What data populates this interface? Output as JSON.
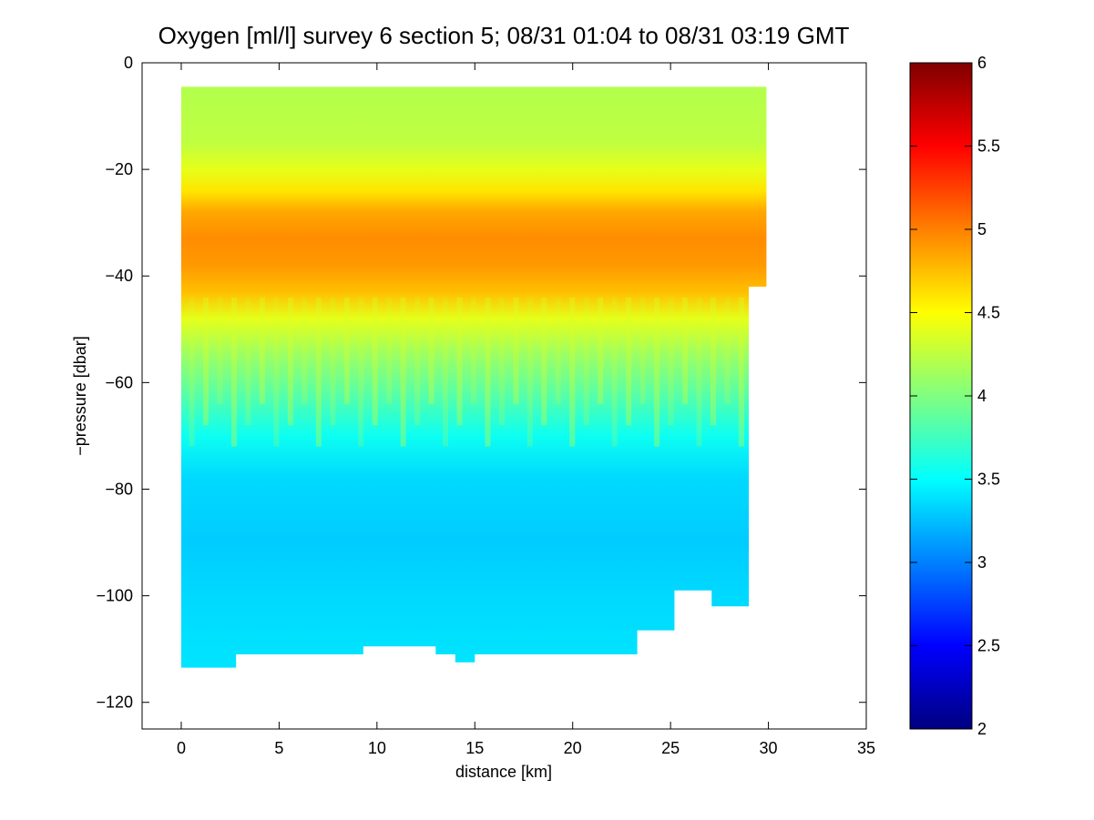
{
  "chart_data": {
    "type": "heatmap",
    "title": "Oxygen [ml/l] survey 6 section 5; 08/31 01:04 to 08/31 03:19 GMT",
    "xlabel": "distance [km]",
    "ylabel": "−pressure [dbar]",
    "xlim": [
      -2,
      35
    ],
    "ylim": [
      -125,
      0
    ],
    "xticks": [
      0,
      5,
      10,
      15,
      20,
      25,
      30,
      35
    ],
    "xtick_labels": [
      "0",
      "5",
      "10",
      "15",
      "20",
      "25",
      "30",
      "35"
    ],
    "yticks": [
      0,
      -20,
      -40,
      -60,
      -80,
      -100,
      -120
    ],
    "ytick_labels": [
      "0",
      "−20",
      "−40",
      "−60",
      "−80",
      "−100",
      "−120"
    ],
    "colorbar": {
      "range": [
        2,
        6
      ],
      "ticks": [
        2,
        2.5,
        3,
        3.5,
        4,
        4.5,
        5,
        5.5,
        6
      ],
      "tick_labels": [
        "2",
        "2.5",
        "3",
        "3.5",
        "4",
        "4.5",
        "5",
        "5.5",
        "6"
      ],
      "colormap": "jet"
    },
    "data_extent": {
      "x": [
        0,
        29.9
      ],
      "y_top": -4.5
    },
    "bottom_profile": [
      {
        "x": 0,
        "y": -113.5
      },
      {
        "x": 2.8,
        "y": -111
      },
      {
        "x": 9.3,
        "y": -109.5
      },
      {
        "x": 13,
        "y": -111
      },
      {
        "x": 14,
        "y": -112.5
      },
      {
        "x": 15,
        "y": -111
      },
      {
        "x": 23.3,
        "y": -106.5
      },
      {
        "x": 25.2,
        "y": -99
      },
      {
        "x": 27.1,
        "y": -102
      },
      {
        "x": 29,
        "y": -42
      },
      {
        "x": 29.9,
        "y": -42
      }
    ],
    "vertical_profile": [
      {
        "depth": -4.5,
        "value": 4.2
      },
      {
        "depth": -15,
        "value": 4.25
      },
      {
        "depth": -20,
        "value": 4.4
      },
      {
        "depth": -24,
        "value": 4.6
      },
      {
        "depth": -28,
        "value": 4.85
      },
      {
        "depth": -33,
        "value": 4.95
      },
      {
        "depth": -38,
        "value": 4.9
      },
      {
        "depth": -43,
        "value": 4.75
      },
      {
        "depth": -48,
        "value": 4.4
      },
      {
        "depth": -55,
        "value": 4.1
      },
      {
        "depth": -62,
        "value": 3.85
      },
      {
        "depth": -70,
        "value": 3.55
      },
      {
        "depth": -78,
        "value": 3.35
      },
      {
        "depth": -90,
        "value": 3.3
      },
      {
        "depth": -100,
        "value": 3.35
      },
      {
        "depth": -113.5,
        "value": 3.4
      }
    ],
    "grid": false
  }
}
